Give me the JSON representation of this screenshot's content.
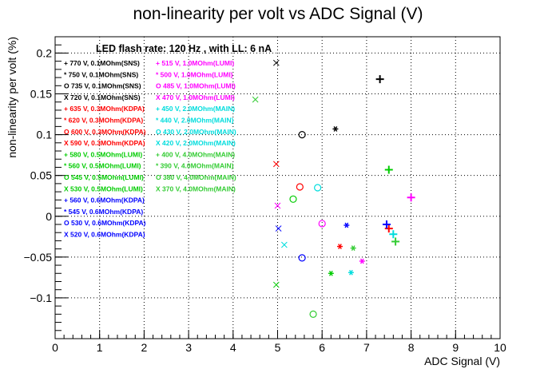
{
  "chart_data": {
    "type": "scatter",
    "title": "non-linearity per volt vs ADC Signal (V)",
    "xlabel": "ADC Signal (V)",
    "ylabel": "non-linearity per volt (%)",
    "xlim": [
      0,
      10
    ],
    "ylim": [
      -0.15,
      0.22
    ],
    "x_ticks": [
      0,
      1,
      2,
      3,
      4,
      5,
      6,
      7,
      8,
      9,
      10
    ],
    "y_ticks": [
      -0.1,
      -0.05,
      0,
      0.05,
      0.1,
      0.15,
      0.2
    ],
    "grid": true,
    "annotation": "LED flash rate: 120 Hz , with LL: 6 nA",
    "legend_placement": "top-left",
    "series": [
      {
        "name": "770 V, 0.1MOhm(SNS)",
        "color": "#000000",
        "marker": "+",
        "points": [
          [
            7.3,
            0.168
          ]
        ]
      },
      {
        "name": "750 V, 0.1MOhm(SNS)",
        "color": "#000000",
        "marker": "*",
        "points": [
          [
            6.3,
            0.107
          ]
        ]
      },
      {
        "name": "735 V, 0.1MOhm(SNS)",
        "color": "#000000",
        "marker": "o",
        "points": [
          [
            5.55,
            0.1
          ]
        ]
      },
      {
        "name": "720 V, 0.1MOhm(SNS)",
        "color": "#000000",
        "marker": "x",
        "points": [
          [
            4.97,
            0.188
          ]
        ]
      },
      {
        "name": "635 V, 0.3MOhm(KDPA)",
        "color": "#ff0000",
        "marker": "+",
        "points": [
          [
            7.5,
            -0.015
          ]
        ]
      },
      {
        "name": "620 V, 0.3MOhm(KDPA)",
        "color": "#ff0000",
        "marker": "*",
        "points": [
          [
            6.4,
            -0.037
          ]
        ]
      },
      {
        "name": "600 V, 0.3MOhm(KDPA)",
        "color": "#ff0000",
        "marker": "o",
        "points": [
          [
            5.5,
            0.036
          ]
        ]
      },
      {
        "name": "590 V, 0.3MOhm(KDPA)",
        "color": "#ff0000",
        "marker": "x",
        "points": [
          [
            4.97,
            0.064
          ]
        ]
      },
      {
        "name": "580 V, 0.5MOhm(LUMI)",
        "color": "#00cc00",
        "marker": "+",
        "points": [
          [
            7.5,
            0.057
          ]
        ]
      },
      {
        "name": "560 V, 0.5MOhm(LUMI)",
        "color": "#00cc00",
        "marker": "*",
        "points": [
          [
            6.2,
            -0.07
          ]
        ]
      },
      {
        "name": "545 V, 0.5MOhm(LUMI)",
        "color": "#00cc00",
        "marker": "o",
        "points": [
          [
            5.35,
            0.021
          ]
        ]
      },
      {
        "name": "530 V, 0.5MOhm(LUMI)",
        "color": "#00cc00",
        "marker": "x",
        "points": [
          [
            4.97,
            -0.084
          ]
        ]
      },
      {
        "name": "560 V, 0.6MOhm(KDPA)",
        "color": "#0000ff",
        "marker": "+",
        "points": [
          [
            7.45,
            -0.01
          ]
        ]
      },
      {
        "name": "545 V, 0.6MOhm(KDPA)",
        "color": "#0000ff",
        "marker": "*",
        "points": [
          [
            6.55,
            -0.011
          ]
        ]
      },
      {
        "name": "530 V, 0.6MOhm(KDPA)",
        "color": "#0000ff",
        "marker": "o",
        "points": [
          [
            5.55,
            -0.051
          ]
        ]
      },
      {
        "name": "520 V, 0.6MOhm(KDPA)",
        "color": "#0000ff",
        "marker": "x",
        "points": [
          [
            5.02,
            -0.015
          ]
        ]
      },
      {
        "name": "515 V, 1.0MOhm(LUMI)",
        "color": "#ff00ff",
        "marker": "+",
        "points": [
          [
            8.0,
            0.023
          ]
        ]
      },
      {
        "name": "500 V, 1.0MOhm(LUMI)",
        "color": "#ff00ff",
        "marker": "*",
        "points": [
          [
            6.9,
            -0.055
          ]
        ]
      },
      {
        "name": "485 V, 1.0MOhm(LUMI)",
        "color": "#ff00ff",
        "marker": "o",
        "points": [
          [
            6.0,
            -0.009
          ]
        ]
      },
      {
        "name": "470 V, 1.0MOhm(LUMI)",
        "color": "#ff00ff",
        "marker": "x",
        "points": [
          [
            5.0,
            0.013
          ]
        ]
      },
      {
        "name": "450 V, 2.0MOhm(MAIN)",
        "color": "#00dddd",
        "marker": "+",
        "points": [
          [
            7.6,
            -0.022
          ]
        ]
      },
      {
        "name": "440 V, 2.0MOhm(MAIN)",
        "color": "#00dddd",
        "marker": "*",
        "points": [
          [
            6.65,
            -0.069
          ]
        ]
      },
      {
        "name": "430 V, 2.0MOhm(MAIN)",
        "color": "#00dddd",
        "marker": "o",
        "points": [
          [
            5.9,
            0.035
          ]
        ]
      },
      {
        "name": "420 V, 2.0MOhm(MAIN)",
        "color": "#00dddd",
        "marker": "x",
        "points": [
          [
            5.15,
            -0.035
          ]
        ]
      },
      {
        "name": "400 V, 4.0MOhm(MAIN)",
        "color": "#33cc33",
        "marker": "+",
        "points": [
          [
            7.65,
            -0.031
          ]
        ]
      },
      {
        "name": "390 V, 4.0MOhm(MAIN)",
        "color": "#33cc33",
        "marker": "*",
        "points": [
          [
            6.7,
            -0.039
          ]
        ]
      },
      {
        "name": "380 V, 4.0MOhm(MAIN)",
        "color": "#33cc33",
        "marker": "o",
        "points": [
          [
            5.8,
            -0.12
          ]
        ]
      },
      {
        "name": "370 V, 4.0MOhm(MAIN)",
        "color": "#33cc33",
        "marker": "x",
        "points": [
          [
            4.5,
            0.143
          ]
        ]
      }
    ]
  },
  "legend": {
    "col1": [
      {
        "text": "+ 770 V, 0.1MOhm(SNS)",
        "color": "#000000"
      },
      {
        "text": "* 750 V, 0.1MOhm(SNS)",
        "color": "#000000"
      },
      {
        "text": "O 735 V, 0.1MOhm(SNS)",
        "color": "#000000"
      },
      {
        "text": "X 720 V, 0.1MOhm(SNS)",
        "color": "#000000"
      },
      {
        "text": "+ 635 V, 0.3MOhm(KDPA)",
        "color": "#ff0000"
      },
      {
        "text": "* 620 V, 0.3MOhm(KDPA)",
        "color": "#ff0000"
      },
      {
        "text": "O 600 V, 0.3MOhm(KDPA)",
        "color": "#ff0000"
      },
      {
        "text": "X 590 V, 0.3MOhm(KDPA)",
        "color": "#ff0000"
      },
      {
        "text": "+ 580 V, 0.5MOhm(LUMI)",
        "color": "#00cc00"
      },
      {
        "text": "* 560 V, 0.5MOhm(LUMI)",
        "color": "#00cc00"
      },
      {
        "text": "O 545 V, 0.5MOhm(LUMI)",
        "color": "#00cc00"
      },
      {
        "text": "X 530 V, 0.5MOhm(LUMI)",
        "color": "#00cc00"
      },
      {
        "text": "+ 560 V, 0.6MOhm(KDPA)",
        "color": "#0000ff"
      },
      {
        "text": "* 545 V, 0.6MOhm(KDPA)",
        "color": "#0000ff"
      },
      {
        "text": "O 530 V, 0.6MOhm(KDPA)",
        "color": "#0000ff"
      },
      {
        "text": "X 520 V, 0.6MOhm(KDPA)",
        "color": "#0000ff"
      }
    ],
    "col2": [
      {
        "text": "+ 515 V, 1.0MOhm(LUMI)",
        "color": "#ff00ff"
      },
      {
        "text": "* 500 V, 1.0MOhm(LUMI)",
        "color": "#ff00ff"
      },
      {
        "text": "O 485 V, 1.0MOhm(LUMI)",
        "color": "#ff00ff"
      },
      {
        "text": "X 470 V, 1.0MOhm(LUMI)",
        "color": "#ff00ff"
      },
      {
        "text": "+ 450 V, 2.0MOhm(MAIN)",
        "color": "#00dddd"
      },
      {
        "text": "* 440 V, 2.0MOhm(MAIN)",
        "color": "#00dddd"
      },
      {
        "text": "O 430 V, 2.0MOhm(MAIN)",
        "color": "#00dddd"
      },
      {
        "text": "X 420 V, 2.0MOhm(MAIN)",
        "color": "#00dddd"
      },
      {
        "text": "+ 400 V, 4.0MOhm(MAIN)",
        "color": "#33cc33"
      },
      {
        "text": "* 390 V, 4.0MOhm(MAIN)",
        "color": "#33cc33"
      },
      {
        "text": "O 380 V, 4.0MOhm(MAIN)",
        "color": "#33cc33"
      },
      {
        "text": "X 370 V, 4.0MOhm(MAIN)",
        "color": "#33cc33"
      }
    ]
  }
}
